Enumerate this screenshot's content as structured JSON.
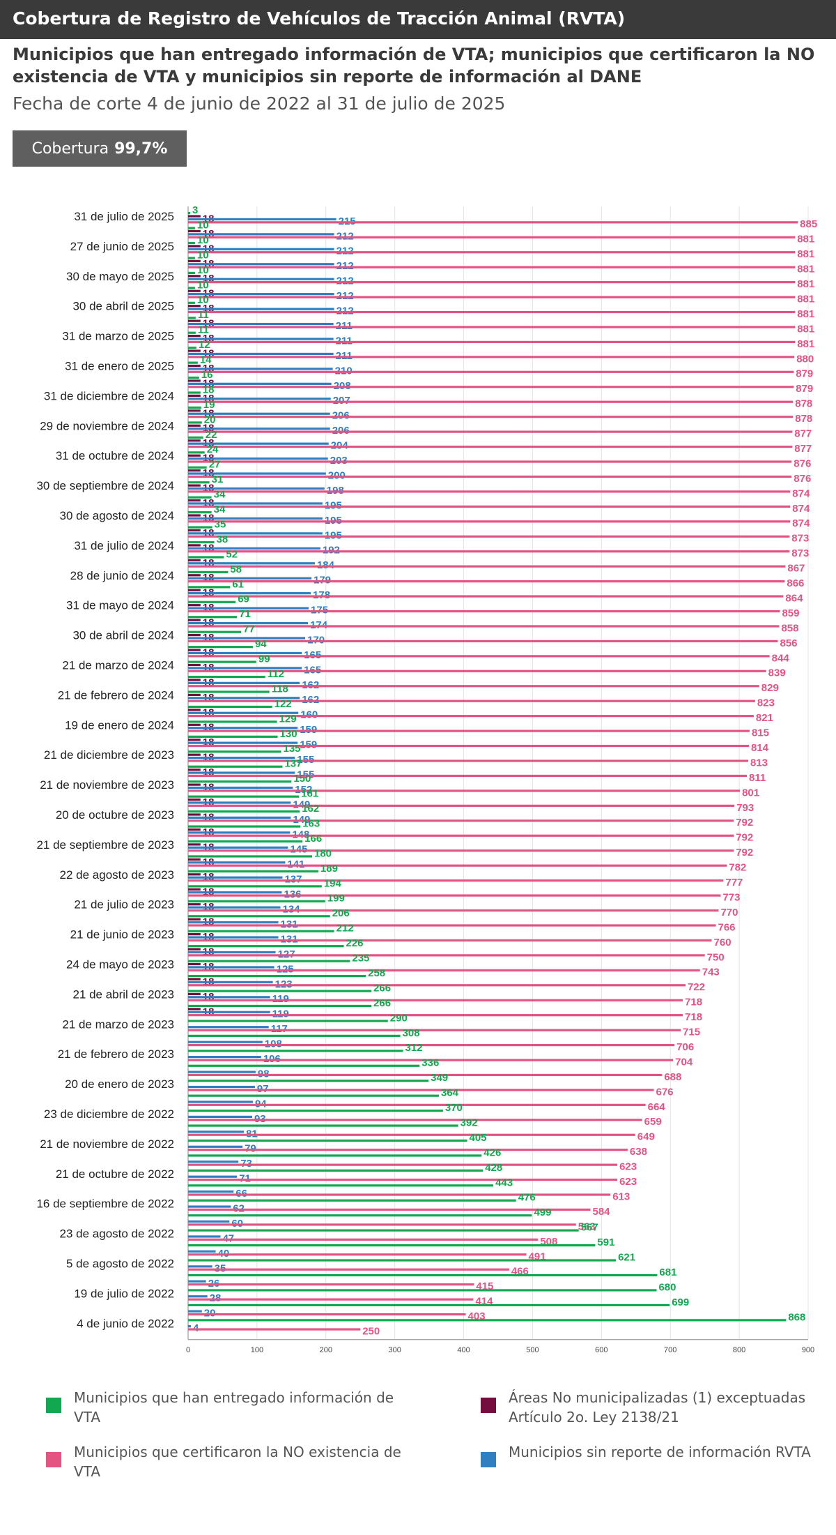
{
  "header": {
    "title": "Cobertura de Registro de Vehículos de Tracción Animal (RVTA)",
    "subtitle": "Municipios que han entregado información de VTA; municipios que certificaron la NO existencia de VTA y municipios sin reporte de información al DANE",
    "date_range": "Fecha de corte 4 de junio de 2022 al 31 de julio de 2025"
  },
  "coverage": {
    "label": "Cobertura",
    "value": "99,7%"
  },
  "colors": {
    "green": "#12a84f",
    "maroon": "#750d3f",
    "pink": "#e35483",
    "blue": "#2f7fc1",
    "axis": "#999999"
  },
  "legend": {
    "green": "Municipios que han entregado información de VTA",
    "maroon": "Áreas No municipalizadas (1) exceptuadas Artículo 2o. Ley 2138/21",
    "pink": "Municipios que certificaron la NO existencia de VTA",
    "blue": "Municipios sin reporte de información RVTA"
  },
  "chart_data": {
    "type": "bar",
    "orientation": "horizontal",
    "xlim": [
      0,
      900
    ],
    "x_ticks": [
      0,
      100,
      200,
      300,
      400,
      500,
      600,
      700,
      800,
      900
    ],
    "series_order": [
      "green",
      "maroon",
      "blue",
      "pink"
    ],
    "date_labels": [
      {
        "label": "31 de julio de 2025",
        "group": 0
      },
      {
        "label": "27 de junio de 2025",
        "group": 2
      },
      {
        "label": "30 de mayo de 2025",
        "group": 4
      },
      {
        "label": "30 de abril de 2025",
        "group": 6
      },
      {
        "label": "31 de marzo de 2025",
        "group": 8
      },
      {
        "label": "31 de enero de 2025",
        "group": 10
      },
      {
        "label": "31 de diciembre de 2024",
        "group": 12
      },
      {
        "label": "29 de noviembre de 2024",
        "group": 14
      },
      {
        "label": "31 de octubre de 2024",
        "group": 16
      },
      {
        "label": "30 de septiembre de 2024",
        "group": 18
      },
      {
        "label": "30 de agosto de 2024",
        "group": 20
      },
      {
        "label": "31 de julio de 2024",
        "group": 22
      },
      {
        "label": "28 de junio de 2024",
        "group": 24
      },
      {
        "label": "31 de mayo de 2024",
        "group": 26
      },
      {
        "label": "30 de abril de 2024",
        "group": 28
      },
      {
        "label": "21 de marzo de 2024",
        "group": 30
      },
      {
        "label": "21 de febrero de 2024",
        "group": 32
      },
      {
        "label": "19 de enero de 2024",
        "group": 34
      },
      {
        "label": "21 de diciembre de 2023",
        "group": 36
      },
      {
        "label": "21 de noviembre de 2023",
        "group": 38
      },
      {
        "label": "20 de octubre de 2023",
        "group": 40
      },
      {
        "label": "21 de septiembre de 2023",
        "group": 42
      },
      {
        "label": "22 de agosto de 2023",
        "group": 44
      },
      {
        "label": "21 de julio de 2023",
        "group": 46
      },
      {
        "label": "21 de junio de 2023",
        "group": 48
      },
      {
        "label": "24 de mayo de 2023",
        "group": 50
      },
      {
        "label": "21 de abril de 2023",
        "group": 52
      },
      {
        "label": "21 de marzo de 2023",
        "group": 54
      },
      {
        "label": "21 de febrero de 2023",
        "group": 56
      },
      {
        "label": "20 de enero de 2023",
        "group": 58
      },
      {
        "label": "23 de diciembre de 2022",
        "group": 60
      },
      {
        "label": "21 de noviembre de 2022",
        "group": 62
      },
      {
        "label": "21 de octubre de 2022",
        "group": 64
      },
      {
        "label": "16 de septiembre de 2022",
        "group": 66
      },
      {
        "label": "23 de agosto de 2022",
        "group": 68
      },
      {
        "label": "5 de agosto de 2022",
        "group": 70
      },
      {
        "label": "19 de julio de 2022",
        "group": 72
      },
      {
        "label": "4 de junio de 2022",
        "group": 74
      }
    ],
    "groups": [
      {
        "green": 3,
        "maroon": 18,
        "blue": 215,
        "pink": 885
      },
      {
        "green": 10,
        "maroon": 18,
        "blue": 212,
        "pink": 881
      },
      {
        "green": 10,
        "maroon": 18,
        "blue": 212,
        "pink": 881
      },
      {
        "green": 10,
        "maroon": 18,
        "blue": 212,
        "pink": 881
      },
      {
        "green": 10,
        "maroon": 18,
        "blue": 212,
        "pink": 881
      },
      {
        "green": 10,
        "maroon": 18,
        "blue": 212,
        "pink": 881
      },
      {
        "green": 10,
        "maroon": 18,
        "blue": 212,
        "pink": 881
      },
      {
        "green": 11,
        "maroon": 18,
        "blue": 211,
        "pink": 881
      },
      {
        "green": 11,
        "maroon": 18,
        "blue": 211,
        "pink": 881
      },
      {
        "green": 12,
        "maroon": 18,
        "blue": 211,
        "pink": 880
      },
      {
        "green": 14,
        "maroon": 18,
        "blue": 210,
        "pink": 879
      },
      {
        "green": 16,
        "maroon": 18,
        "blue": 208,
        "pink": 879
      },
      {
        "green": 18,
        "maroon": 18,
        "blue": 207,
        "pink": 878
      },
      {
        "green": 19,
        "maroon": 18,
        "blue": 206,
        "pink": 878
      },
      {
        "green": 20,
        "maroon": 18,
        "blue": 206,
        "pink": 877
      },
      {
        "green": 22,
        "maroon": 18,
        "blue": 204,
        "pink": 877
      },
      {
        "green": 24,
        "maroon": 18,
        "blue": 203,
        "pink": 876
      },
      {
        "green": 27,
        "maroon": 18,
        "blue": 200,
        "pink": 876
      },
      {
        "green": 31,
        "maroon": 18,
        "blue": 198,
        "pink": 874
      },
      {
        "green": 34,
        "maroon": 18,
        "blue": 195,
        "pink": 874
      },
      {
        "green": 34,
        "maroon": 18,
        "blue": 195,
        "pink": 874
      },
      {
        "green": 35,
        "maroon": 18,
        "blue": 195,
        "pink": 873
      },
      {
        "green": 38,
        "maroon": 18,
        "blue": 192,
        "pink": 873
      },
      {
        "green": 52,
        "maroon": 18,
        "blue": 184,
        "pink": 867
      },
      {
        "green": 58,
        "maroon": 18,
        "blue": 179,
        "pink": 866
      },
      {
        "green": 61,
        "maroon": 18,
        "blue": 178,
        "pink": 864
      },
      {
        "green": 69,
        "maroon": 18,
        "blue": 175,
        "pink": 859
      },
      {
        "green": 71,
        "maroon": 18,
        "blue": 174,
        "pink": 858
      },
      {
        "green": 77,
        "maroon": 18,
        "blue": 170,
        "pink": 856
      },
      {
        "green": 94,
        "maroon": 18,
        "blue": 165,
        "pink": 844
      },
      {
        "green": 99,
        "maroon": 18,
        "blue": 165,
        "pink": 839
      },
      {
        "green": 112,
        "maroon": 18,
        "blue": 162,
        "pink": 829
      },
      {
        "green": 118,
        "maroon": 18,
        "blue": 162,
        "pink": 823
      },
      {
        "green": 122,
        "maroon": 18,
        "blue": 160,
        "pink": 821
      },
      {
        "green": 129,
        "maroon": 18,
        "blue": 159,
        "pink": 815
      },
      {
        "green": 130,
        "maroon": 18,
        "blue": 159,
        "pink": 814
      },
      {
        "green": 135,
        "maroon": 18,
        "blue": 155,
        "pink": 813
      },
      {
        "green": 137,
        "maroon": 18,
        "blue": 155,
        "pink": 811
      },
      {
        "green": 150,
        "maroon": 18,
        "blue": 152,
        "pink": 801
      },
      {
        "green": 161,
        "maroon": 18,
        "blue": 149,
        "pink": 793
      },
      {
        "green": 162,
        "maroon": 18,
        "blue": 149,
        "pink": 792
      },
      {
        "green": 163,
        "maroon": 18,
        "blue": 148,
        "pink": 792
      },
      {
        "green": 166,
        "maroon": 18,
        "blue": 145,
        "pink": 792
      },
      {
        "green": 180,
        "maroon": 18,
        "blue": 141,
        "pink": 782
      },
      {
        "green": 189,
        "maroon": 18,
        "blue": 137,
        "pink": 777
      },
      {
        "green": 194,
        "maroon": 18,
        "blue": 136,
        "pink": 773
      },
      {
        "green": 199,
        "maroon": 18,
        "blue": 134,
        "pink": 770
      },
      {
        "green": 206,
        "maroon": 18,
        "blue": 131,
        "pink": 766
      },
      {
        "green": 212,
        "maroon": 18,
        "blue": 131,
        "pink": 760
      },
      {
        "green": 226,
        "maroon": 18,
        "blue": 127,
        "pink": 750
      },
      {
        "green": 235,
        "maroon": 18,
        "blue": 125,
        "pink": 743
      },
      {
        "green": 258,
        "maroon": 18,
        "blue": 123,
        "pink": 722
      },
      {
        "green": 266,
        "maroon": 18,
        "blue": 119,
        "pink": 718
      },
      {
        "green": 266,
        "maroon": 18,
        "blue": 119,
        "pink": 718
      },
      {
        "green": 290,
        "maroon": null,
        "blue": 117,
        "pink": 715
      },
      {
        "green": 308,
        "maroon": null,
        "blue": 108,
        "pink": 706
      },
      {
        "green": 312,
        "maroon": null,
        "blue": 106,
        "pink": 704
      },
      {
        "green": 336,
        "maroon": null,
        "blue": 98,
        "pink": 688
      },
      {
        "green": 349,
        "maroon": null,
        "blue": 97,
        "pink": 676
      },
      {
        "green": 364,
        "maroon": null,
        "blue": 94,
        "pink": 664
      },
      {
        "green": 370,
        "maroon": null,
        "blue": 93,
        "pink": 659
      },
      {
        "green": 392,
        "maroon": null,
        "blue": 81,
        "pink": 649
      },
      {
        "green": 405,
        "maroon": null,
        "blue": 79,
        "pink": 638
      },
      {
        "green": 426,
        "maroon": null,
        "blue": 73,
        "pink": 623
      },
      {
        "green": 428,
        "maroon": null,
        "blue": 71,
        "pink": 623
      },
      {
        "green": 443,
        "maroon": null,
        "blue": 66,
        "pink": 613
      },
      {
        "green": 476,
        "maroon": null,
        "blue": 62,
        "pink": 584
      },
      {
        "green": 499,
        "maroon": null,
        "blue": 60,
        "pink": 563
      },
      {
        "green": 567,
        "maroon": null,
        "blue": 47,
        "pink": 508
      },
      {
        "green": 591,
        "maroon": null,
        "blue": 40,
        "pink": 491
      },
      {
        "green": 621,
        "maroon": null,
        "blue": 35,
        "pink": 466
      },
      {
        "green": 681,
        "maroon": null,
        "blue": 26,
        "pink": 415
      },
      {
        "green": 680,
        "maroon": null,
        "blue": 28,
        "pink": 414
      },
      {
        "green": 699,
        "maroon": null,
        "blue": 20,
        "pink": 403
      },
      {
        "green": 868,
        "maroon": null,
        "blue": 4,
        "pink": 250
      }
    ]
  }
}
